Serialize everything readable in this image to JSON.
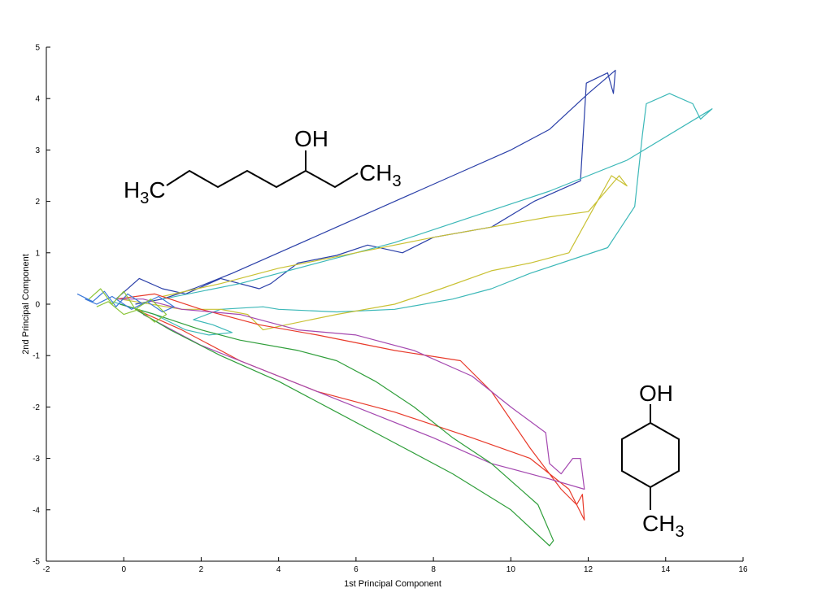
{
  "chart_data": {
    "type": "line",
    "title": "",
    "xlabel": "1st Principal Component",
    "ylabel": "2nd Principal Component",
    "xlim": [
      -2,
      16
    ],
    "ylim": [
      -5,
      5
    ],
    "xticks": [
      "-2",
      "0",
      "2",
      "4",
      "6",
      "8",
      "10",
      "12",
      "14",
      "16"
    ],
    "yticks": [
      "5",
      "4",
      "3",
      "2",
      "1",
      "0",
      "-1",
      "-2",
      "-3",
      "-4",
      "-5"
    ],
    "grid": false,
    "legend": "none",
    "series": [
      {
        "color": "#2a3fa8",
        "x": [
          -0.2,
          0.4,
          1.0,
          1.6,
          2.5,
          3.5,
          3.8,
          4.5,
          5.5,
          6.3,
          7.2,
          8.0,
          9.5,
          10.6,
          11.8,
          11.95,
          12.5,
          12.65,
          12.7,
          12.0,
          11.0,
          10.0,
          8.5,
          7.0,
          5.5,
          4.0,
          2.8,
          1.8,
          1.0,
          0.3
        ],
        "y": [
          0.1,
          0.5,
          0.3,
          0.2,
          0.5,
          0.3,
          0.4,
          0.8,
          0.95,
          1.15,
          1.0,
          1.3,
          1.5,
          2.0,
          2.4,
          4.3,
          4.5,
          4.1,
          4.55,
          4.1,
          3.4,
          3.0,
          2.5,
          2.0,
          1.5,
          1.0,
          0.6,
          0.3,
          0.1,
          0.0
        ]
      },
      {
        "color": "#3cb8b8",
        "x": [
          -0.3,
          0.8,
          1.6,
          2.2,
          2.8,
          2.3,
          1.8,
          2.5,
          3.6,
          4.0,
          5.5,
          7.0,
          8.5,
          9.5,
          10.5,
          12.5,
          13.2,
          13.4,
          13.5,
          14.1,
          14.7,
          14.9,
          15.2,
          13.0,
          11.0,
          9.0,
          7.0,
          5.0,
          3.0,
          1.0
        ],
        "y": [
          0.05,
          -0.2,
          -0.5,
          -0.6,
          -0.55,
          -0.4,
          -0.3,
          -0.1,
          -0.05,
          -0.1,
          -0.15,
          -0.1,
          0.1,
          0.3,
          0.6,
          1.1,
          1.9,
          3.3,
          3.9,
          4.1,
          3.9,
          3.6,
          3.8,
          2.8,
          2.2,
          1.7,
          1.2,
          0.8,
          0.4,
          0.1
        ]
      },
      {
        "color": "#c9c133",
        "x": [
          -0.1,
          1.5,
          2.5,
          3.2,
          3.6,
          4.2,
          5.5,
          7.0,
          8.2,
          9.5,
          10.5,
          11.5,
          12.6,
          13.0,
          12.8,
          12.0,
          11.0,
          9.5,
          8.0,
          6.0,
          4.0,
          2.5,
          1.0
        ],
        "y": [
          0.1,
          -0.1,
          -0.1,
          -0.2,
          -0.5,
          -0.4,
          -0.2,
          0.0,
          0.3,
          0.65,
          0.8,
          1.0,
          2.5,
          2.3,
          2.5,
          1.8,
          1.7,
          1.5,
          1.3,
          1.0,
          0.7,
          0.4,
          0.15
        ]
      },
      {
        "color": "#e83a2a",
        "x": [
          -0.2,
          0.8,
          2.0,
          3.5,
          5.0,
          7.0,
          8.7,
          9.5,
          10.5,
          11.3,
          11.7,
          11.85,
          11.9,
          11.5,
          10.5,
          9.0,
          7.0,
          5.0,
          3.0,
          1.5,
          0.3
        ],
        "y": [
          0.1,
          0.2,
          -0.1,
          -0.4,
          -0.6,
          -0.9,
          -1.1,
          -1.7,
          -2.8,
          -3.6,
          -3.9,
          -3.7,
          -4.2,
          -3.6,
          -3.0,
          -2.6,
          -2.1,
          -1.7,
          -1.1,
          -0.5,
          -0.1
        ]
      },
      {
        "color": "#a448b0",
        "x": [
          -0.2,
          0.5,
          1.5,
          3.0,
          4.5,
          6.0,
          7.5,
          9.0,
          10.0,
          10.9,
          11.0,
          11.3,
          11.6,
          11.8,
          11.9,
          11.0,
          9.5,
          8.0,
          6.0,
          4.0,
          2.0,
          0.5
        ],
        "y": [
          0.1,
          0.1,
          -0.1,
          -0.2,
          -0.5,
          -0.6,
          -0.9,
          -1.4,
          -2.0,
          -2.5,
          -3.1,
          -3.3,
          -3.0,
          -3.0,
          -3.6,
          -3.4,
          -3.1,
          -2.6,
          -2.0,
          -1.4,
          -0.8,
          -0.2
        ]
      },
      {
        "color": "#2f9e3a",
        "x": [
          -0.1,
          0.8,
          2.0,
          3.0,
          4.5,
          5.5,
          6.5,
          7.5,
          8.5,
          9.5,
          10.7,
          11.1,
          11.0,
          10.0,
          8.5,
          7.0,
          5.5,
          4.0,
          2.5,
          1.2,
          0.3
        ],
        "y": [
          0.0,
          -0.2,
          -0.5,
          -0.7,
          -0.9,
          -1.1,
          -1.5,
          -2.0,
          -2.6,
          -3.1,
          -3.9,
          -4.6,
          -4.7,
          -4.0,
          -3.3,
          -2.7,
          -2.1,
          -1.5,
          -1.0,
          -0.5,
          -0.1
        ]
      },
      {
        "color": "#3a78d8",
        "x": [
          -1.2,
          -0.8,
          -0.5,
          -0.2,
          0.1,
          0.5,
          0.9,
          1.3,
          1.0,
          0.6,
          0.2,
          -0.3,
          -0.7,
          -1.0
        ],
        "y": [
          0.2,
          0.05,
          0.25,
          -0.05,
          0.2,
          0.0,
          0.15,
          -0.05,
          -0.15,
          0.05,
          -0.1,
          0.15,
          0.0,
          0.1
        ]
      },
      {
        "color": "#8cc63a",
        "x": [
          -0.9,
          -0.6,
          -0.3,
          0.0,
          0.3,
          0.7,
          1.1,
          0.8,
          0.4,
          0.0,
          -0.4,
          -0.7
        ],
        "y": [
          0.1,
          0.3,
          0.0,
          0.25,
          -0.1,
          0.1,
          -0.2,
          -0.35,
          -0.1,
          -0.2,
          0.05,
          -0.05
        ]
      }
    ]
  },
  "annotations": {
    "mol1_oh": "OH",
    "mol1_h3c_main": "H",
    "mol1_h3c_sub": "3",
    "mol1_h3c_c": "C",
    "mol1_ch3_main": "CH",
    "mol1_ch3_sub": "3",
    "mol2_oh": "OH",
    "mol2_ch3_main": "CH",
    "mol2_ch3_sub": "3"
  }
}
